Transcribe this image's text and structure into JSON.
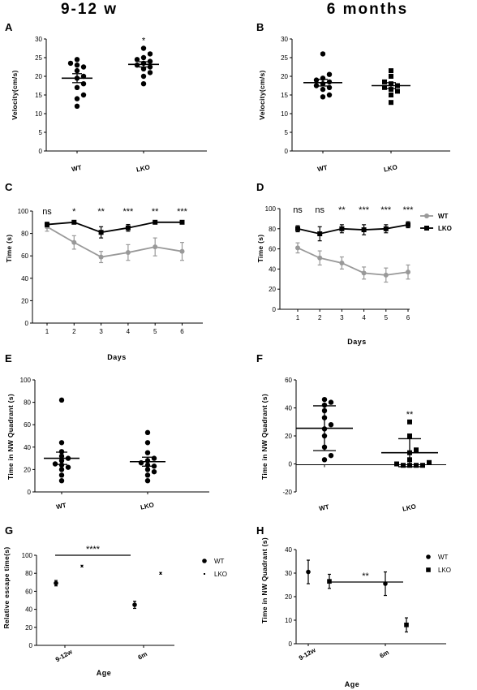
{
  "headers": {
    "left": "9-12 w",
    "right": "6 months"
  },
  "chart_data": [
    {
      "id": "A",
      "type": "scatter",
      "ylabel": "Velocity(cm/s)",
      "ylim": [
        0,
        30
      ],
      "yticks": [
        0,
        5,
        10,
        15,
        20,
        25,
        30
      ],
      "categories": [
        "WT",
        "LKO"
      ],
      "groups": [
        {
          "name": "WT",
          "points": [
            12,
            14,
            15,
            17,
            18,
            19.5,
            20,
            21.5,
            22.5,
            23,
            23.5,
            24.5
          ],
          "mean": 19.5,
          "err": 1.2,
          "sig": ""
        },
        {
          "name": "LKO",
          "points": [
            18,
            20,
            21,
            22,
            22.5,
            23,
            23.5,
            24,
            24.5,
            25,
            26,
            27.5
          ],
          "mean": 23.2,
          "err": 0.7,
          "sig": "*"
        }
      ]
    },
    {
      "id": "B",
      "type": "scatter",
      "ylabel": "Velocity(cm/s)",
      "ylim": [
        0,
        30
      ],
      "yticks": [
        0,
        5,
        10,
        15,
        20,
        25,
        30
      ],
      "categories": [
        "WT",
        "LKO"
      ],
      "groups": [
        {
          "name": "WT",
          "points": [
            14.5,
            15,
            16.5,
            17,
            17.5,
            18,
            18.5,
            19,
            19.5,
            20.5,
            26
          ],
          "mean": 18.3,
          "err": 0.9,
          "sig": ""
        },
        {
          "name": "LKO",
          "points": [
            13,
            15,
            16,
            16.5,
            17,
            17.5,
            18,
            18.5,
            20,
            21.5
          ],
          "mean": 17.5,
          "err": 0.8,
          "sig": ""
        }
      ]
    },
    {
      "id": "C",
      "type": "line",
      "ylabel": "Time (s)",
      "xlabel": "Days",
      "ylim": [
        0,
        100
      ],
      "yticks": [
        0,
        20,
        40,
        60,
        80,
        100
      ],
      "x": [
        1,
        2,
        3,
        4,
        5,
        6
      ],
      "series": [
        {
          "name": "WT",
          "values": [
            86,
            72,
            59,
            63,
            68,
            64
          ],
          "err": [
            4,
            6,
            5,
            7,
            8,
            8
          ]
        },
        {
          "name": "LKO",
          "values": [
            88,
            90,
            81,
            85,
            90,
            90
          ],
          "err": [
            2,
            1,
            5,
            3,
            1,
            1
          ]
        }
      ],
      "sig": [
        "ns",
        "*",
        "**",
        "***",
        "**",
        "***"
      ]
    },
    {
      "id": "D",
      "type": "line",
      "ylabel": "Time (s)",
      "xlabel": "Days",
      "ylim": [
        0,
        100
      ],
      "yticks": [
        0,
        20,
        40,
        60,
        80,
        100
      ],
      "x": [
        1,
        2,
        3,
        4,
        5,
        6
      ],
      "series": [
        {
          "name": "WT",
          "values": [
            61,
            51,
            46,
            36,
            34,
            37
          ],
          "err": [
            5,
            7,
            6,
            6,
            7,
            7
          ]
        },
        {
          "name": "LKO",
          "values": [
            80,
            75,
            80,
            79,
            80,
            84
          ],
          "err": [
            3,
            7,
            4,
            5,
            4,
            3
          ]
        }
      ],
      "sig": [
        "ns",
        "ns",
        "**",
        "***",
        "***",
        "***"
      ]
    },
    {
      "id": "E",
      "type": "scatter",
      "ylabel": "Time in NW Quadrant (s)",
      "ylim": [
        0,
        100
      ],
      "yticks": [
        0,
        20,
        40,
        60,
        80,
        100
      ],
      "categories": [
        "WT",
        "LKO"
      ],
      "groups": [
        {
          "name": "WT",
          "points": [
            10,
            15,
            20,
            22,
            24,
            25,
            28,
            30,
            32,
            36,
            44,
            82
          ],
          "mean": 30,
          "err": 5.5,
          "sig": ""
        },
        {
          "name": "LKO",
          "points": [
            10,
            15,
            18,
            20,
            23,
            24,
            26,
            28,
            30,
            35,
            44,
            53
          ],
          "mean": 27,
          "err": 4,
          "sig": ""
        }
      ]
    },
    {
      "id": "F",
      "type": "scatter",
      "ylabel": "Time in NW Quadrant (s)",
      "ylim": [
        -20,
        60
      ],
      "yticks": [
        -20,
        0,
        20,
        40,
        60
      ],
      "categories": [
        "WT",
        "LKO"
      ],
      "groups": [
        {
          "name": "WT",
          "points": [
            3,
            6,
            12,
            20,
            25,
            28,
            33,
            38,
            42,
            44,
            46
          ],
          "mean": 25.5,
          "err": 16,
          "sig": ""
        },
        {
          "name": "LKO",
          "points": [
            -1,
            -1,
            -1,
            -1,
            0,
            1,
            3,
            8,
            10,
            20,
            30
          ],
          "mean": 8,
          "err": 10,
          "sig": "**"
        }
      ]
    },
    {
      "id": "G",
      "type": "scatter",
      "ylabel": "Relative escape time(s)",
      "xlabel": "Age",
      "ylim": [
        0,
        100
      ],
      "yticks": [
        0,
        20,
        40,
        60,
        80,
        100
      ],
      "categories": [
        "9-12w",
        "6m"
      ],
      "series": [
        {
          "name": "WT",
          "values": [
            69,
            45
          ],
          "err": [
            3,
            4
          ]
        },
        {
          "name": "LKO",
          "values": [
            88,
            80
          ],
          "err": [
            1,
            1
          ]
        }
      ],
      "sig": "****"
    },
    {
      "id": "H",
      "type": "scatter",
      "ylabel": "Time in NW Quadrant (s)",
      "xlabel": "Age",
      "ylim": [
        0,
        40
      ],
      "yticks": [
        0,
        10,
        20,
        30,
        40
      ],
      "categories": [
        "9-12w",
        "6m"
      ],
      "series": [
        {
          "name": "WT",
          "values": [
            30.5,
            25.5
          ],
          "err": [
            5,
            5
          ]
        },
        {
          "name": "LKO",
          "values": [
            26.5,
            8
          ],
          "err": [
            3,
            3
          ]
        }
      ],
      "sig": "**"
    }
  ]
}
